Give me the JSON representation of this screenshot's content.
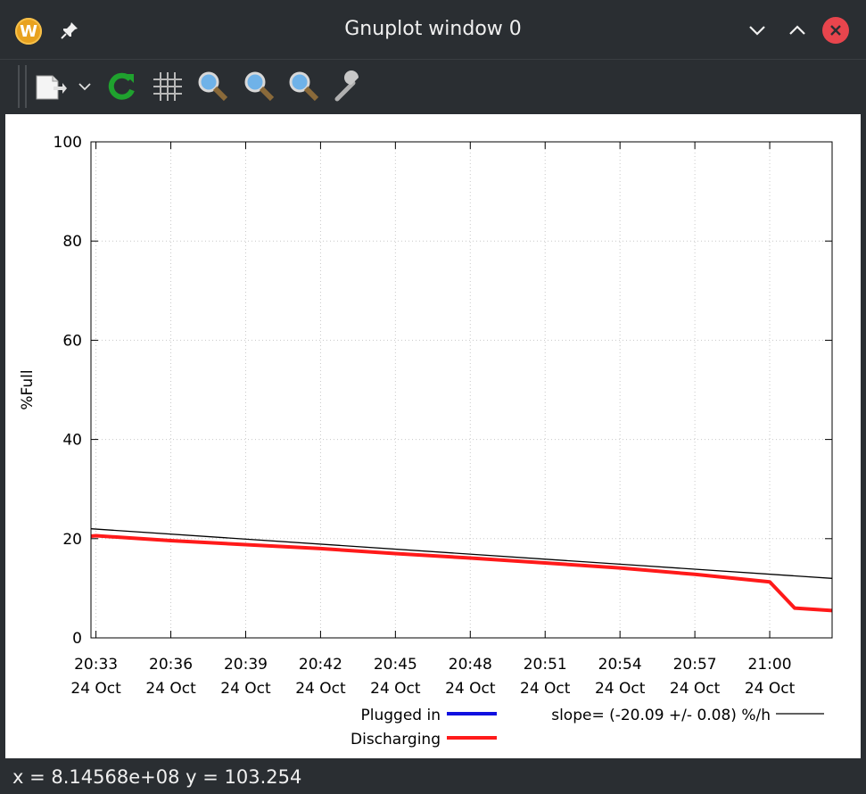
{
  "window": {
    "title": "Gnuplot window 0",
    "app_icon_letter": "W"
  },
  "toolbar": {
    "buttons": [
      "export-icon",
      "dropdown-chevron-icon",
      "replot-icon",
      "grid-icon",
      "zoom-previous-icon",
      "zoom-next-icon",
      "autoscale-icon",
      "settings-icon"
    ]
  },
  "status": {
    "text": "x = 8.14568e+08 y = 103.254"
  },
  "colors": {
    "plugged": "#1010e0",
    "discharging": "#ff1a1a",
    "fit": "#000000"
  },
  "chart_data": {
    "type": "line",
    "title": "",
    "xlabel": "",
    "ylabel": "%Full",
    "ylim": [
      0,
      100
    ],
    "xlim": [
      "2023-10-24 20:32:48",
      "2023-10-24 21:02:30"
    ],
    "yticks": [
      0,
      20,
      40,
      60,
      80,
      100
    ],
    "xticks": [
      {
        "time": "20:33",
        "date": "24 Oct"
      },
      {
        "time": "20:36",
        "date": "24 Oct"
      },
      {
        "time": "20:39",
        "date": "24 Oct"
      },
      {
        "time": "20:42",
        "date": "24 Oct"
      },
      {
        "time": "20:45",
        "date": "24 Oct"
      },
      {
        "time": "20:48",
        "date": "24 Oct"
      },
      {
        "time": "20:51",
        "date": "24 Oct"
      },
      {
        "time": "20:54",
        "date": "24 Oct"
      },
      {
        "time": "20:57",
        "date": "24 Oct"
      },
      {
        "time": "21:00",
        "date": "24 Oct"
      }
    ],
    "grid": true,
    "legend_position": "bottom",
    "series": [
      {
        "name": "Plugged in",
        "color": "#1010e0",
        "points": []
      },
      {
        "name": "Discharging",
        "color": "#ff1a1a",
        "points": [
          [
            "20:32:48",
            20.5
          ],
          [
            "20:33:00",
            20.6
          ],
          [
            "20:36:00",
            19.6
          ],
          [
            "20:39:00",
            18.8
          ],
          [
            "20:42:00",
            18.0
          ],
          [
            "20:45:00",
            17.0
          ],
          [
            "20:48:00",
            16.1
          ],
          [
            "20:51:00",
            15.1
          ],
          [
            "20:54:00",
            14.1
          ],
          [
            "20:57:00",
            12.8
          ],
          [
            "21:00:00",
            11.3
          ],
          [
            "21:01:00",
            6.0
          ],
          [
            "21:02:30",
            5.5
          ]
        ]
      },
      {
        "name": "slope= (-20.09 +/- 0.08) %/h",
        "color": "#000000",
        "points": [
          [
            "20:32:48",
            22.0
          ],
          [
            "21:02:30",
            12.0
          ]
        ]
      }
    ]
  }
}
